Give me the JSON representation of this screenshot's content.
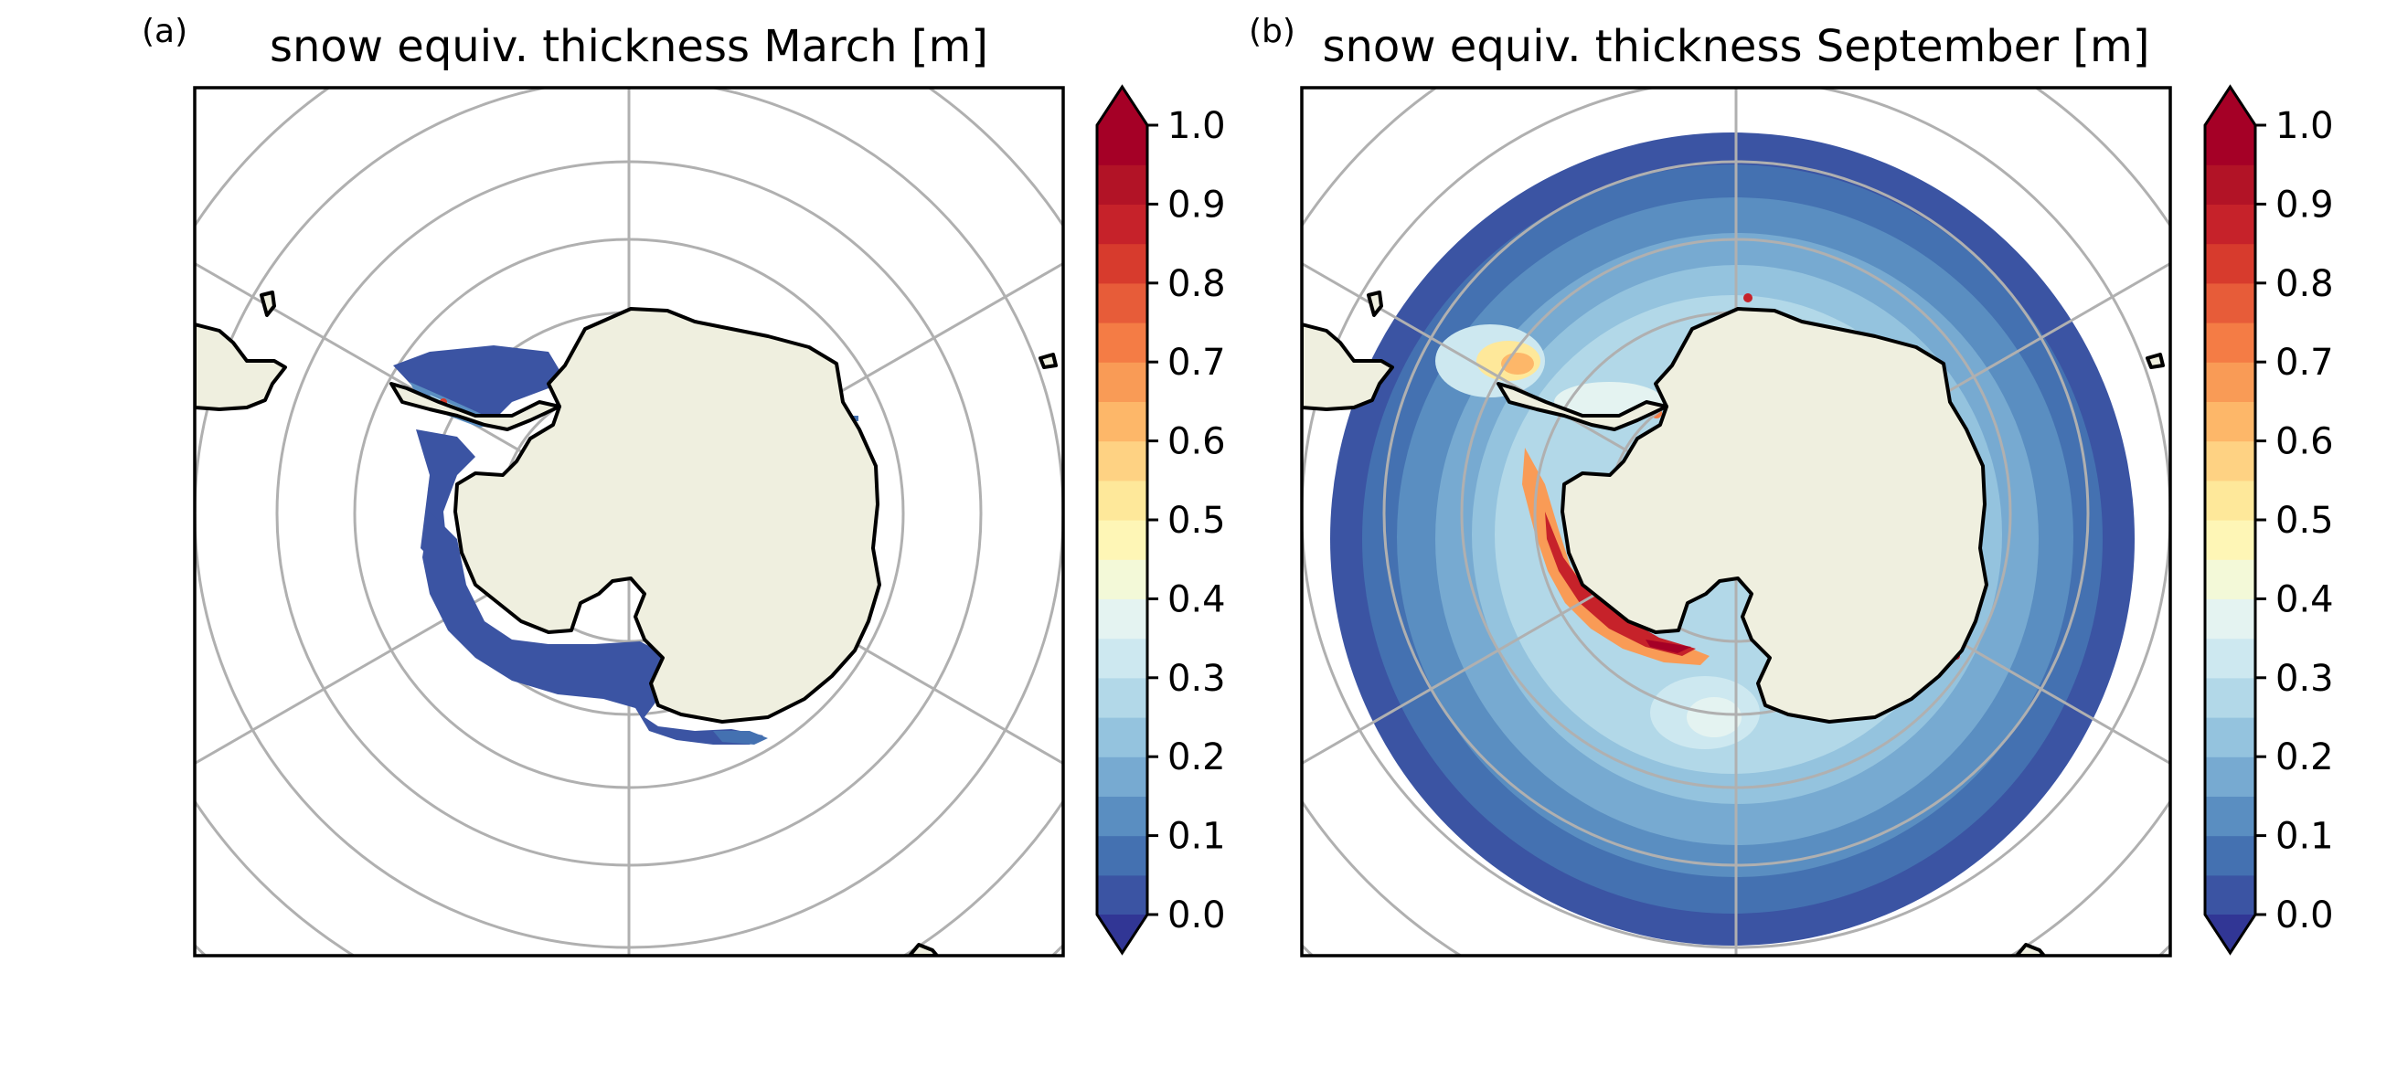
{
  "panels": [
    {
      "tag": "(a)",
      "title": "snow equiv. thickness March [m]",
      "month": "March"
    },
    {
      "tag": "(b)",
      "title": "snow equiv. thickness September [m]",
      "month": "September"
    }
  ],
  "colorbar": {
    "min": 0.0,
    "max": 1.0,
    "step": 0.05,
    "ticks": [
      "0.0",
      "0.1",
      "0.2",
      "0.3",
      "0.4",
      "0.5",
      "0.6",
      "0.7",
      "0.8",
      "0.9",
      "1.0"
    ],
    "extend": "both",
    "colormap": "RdYlBu_r",
    "colors": [
      "#3b54a3",
      "#4471b1",
      "#5a8ec1",
      "#77aad1",
      "#94c3de",
      "#b2d8e8",
      "#cde8f0",
      "#e4f3f1",
      "#f3f9d8",
      "#fef6b6",
      "#fee89a",
      "#fed283",
      "#fdb769",
      "#f99b56",
      "#f47c45",
      "#e75c39",
      "#d73b2d",
      "#c6222a",
      "#b21326",
      "#a50026"
    ],
    "under_color": "#313695",
    "over_color": "#a50026"
  },
  "map_colors": {
    "land": "#efefdf",
    "coast": "#000000",
    "grid": "#b0b0b0",
    "frame": "#000000"
  }
}
